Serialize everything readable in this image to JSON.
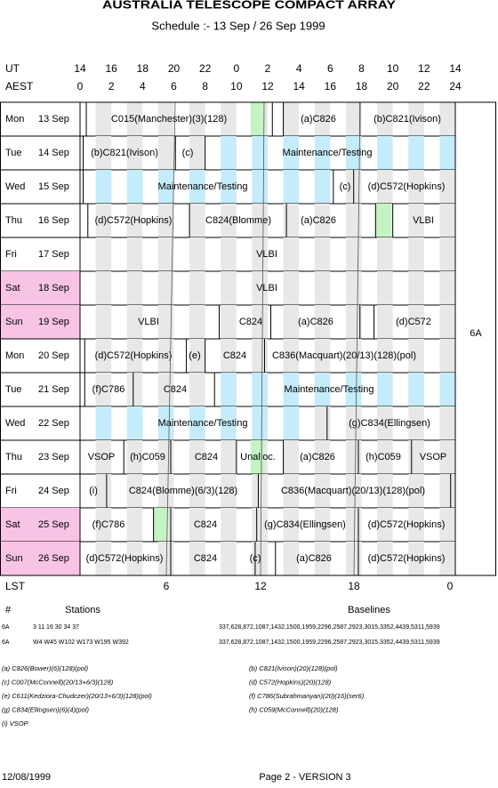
{
  "header": {
    "title": "AUSTRALIA TELESCOPE COMPACT ARRAY",
    "subtitle": "Schedule :- 13 Sep / 26 Sep 1999"
  },
  "axes": {
    "ut": {
      "label": "UT",
      "ticks": [
        "14",
        "16",
        "18",
        "20",
        "22",
        "0",
        "2",
        "4",
        "6",
        "8",
        "10",
        "12",
        "14"
      ]
    },
    "aest": {
      "label": "AEST",
      "ticks": [
        "0",
        "2",
        "4",
        "6",
        "8",
        "10",
        "12",
        "14",
        "16",
        "18",
        "20",
        "22",
        "24"
      ]
    },
    "lst": {
      "label": "LST",
      "ticks": [
        "6",
        "12",
        "18",
        "0"
      ]
    }
  },
  "days": [
    {
      "day": "Mon",
      "date": "13 Sep",
      "weekend": false,
      "items": [
        "C015(Manchester)(3)(128)",
        "(a)C826",
        "(b)C821(Ivison)"
      ]
    },
    {
      "day": "Tue",
      "date": "14 Sep",
      "weekend": false,
      "items": [
        "(b)C821(Ivison)",
        "(c)",
        "Maintenance/Testing"
      ]
    },
    {
      "day": "Wed",
      "date": "15 Sep",
      "weekend": false,
      "items": [
        "Maintenance/Testing",
        "(c)",
        "(d)C572(Hopkins)"
      ]
    },
    {
      "day": "Thu",
      "date": "16 Sep",
      "weekend": false,
      "items": [
        "(d)C572(Hopkins)",
        "C824(Blomme)",
        "(a)C826",
        "VLBI"
      ]
    },
    {
      "day": "Fri",
      "date": "17 Sep",
      "weekend": false,
      "items": [
        "VLBI"
      ]
    },
    {
      "day": "Sat",
      "date": "18 Sep",
      "weekend": true,
      "items": [
        "VLBI"
      ]
    },
    {
      "day": "Sun",
      "date": "19 Sep",
      "weekend": true,
      "items": [
        "VLBI",
        "C824",
        "(a)C826",
        "(d)C572"
      ]
    },
    {
      "day": "Mon",
      "date": "20 Sep",
      "weekend": false,
      "items": [
        "(d)C572(Hopkins)",
        "(e)",
        "C824",
        "C836(Macquart)(20/13)(128)(pol)"
      ]
    },
    {
      "day": "Tue",
      "date": "21 Sep",
      "weekend": false,
      "items": [
        "(f)C786",
        "C824",
        "Maintenance/Testing"
      ]
    },
    {
      "day": "Wed",
      "date": "22 Sep",
      "weekend": false,
      "items": [
        "Maintenance/Testing",
        "(g)C834(Ellingsen)"
      ]
    },
    {
      "day": "Thu",
      "date": "23 Sep",
      "weekend": false,
      "items": [
        "VSOP",
        "(h)C059",
        "C824",
        "Unalloc.",
        "(a)C826",
        "(h)C059",
        "VSOP"
      ]
    },
    {
      "day": "Fri",
      "date": "24 Sep",
      "weekend": false,
      "items": [
        "(i)",
        "C824(Blomme)(6/3)(128)",
        "C836(Macquart)(20/13)(128)(pol)"
      ]
    },
    {
      "day": "Sat",
      "date": "25 Sep",
      "weekend": true,
      "items": [
        "(f)C786",
        "C824",
        "(g)C834(Ellingsen)",
        "(d)C572(Hopkins)"
      ]
    },
    {
      "day": "Sun",
      "date": "26 Sep",
      "weekend": true,
      "items": [
        "(d)C572(Hopkins)",
        "C824",
        "(c)",
        "(a)C826",
        "(d)C572(Hopkins)"
      ]
    }
  ],
  "array_config": "6A",
  "stations_table": {
    "headers": [
      "#",
      "Stations",
      "Baselines"
    ],
    "rows": [
      [
        "6A",
        "3 11 16 30 34 37",
        "337,628,872,1087,1432,1500,1959,2296,2587,2923,3015,3352,4439,5311,5939"
      ],
      [
        "6A",
        "W4 W45 W102 W173 W195 W392",
        "337,628,872,1087,1432,1500,1959,2296,2587,2923,3015,3352,4439,5311,5939"
      ]
    ]
  },
  "footnotes": [
    "(a) C826(Bower)(6)(128)(pol)",
    "(b) C821(Ivison)(20)(128)(pol)",
    "(c) C007(McConnell)(20/13+6/3)(128)",
    "(d) C572(Hopkins)(20)(128)",
    "(e) C611(Kedziora-Chudczer)(20/13+6/3)(128)(pol)",
    "(f) C786(Subrahmanyan)(20)(16)(ser6)",
    "(g) C834(Ellingsen)(6)(4)(pol)",
    "(h) C059(McConnell)(20)(128)",
    "(i) VSOP"
  ],
  "footer": {
    "date": "12/08/1999",
    "page": "Page 2 - VERSION 3"
  }
}
